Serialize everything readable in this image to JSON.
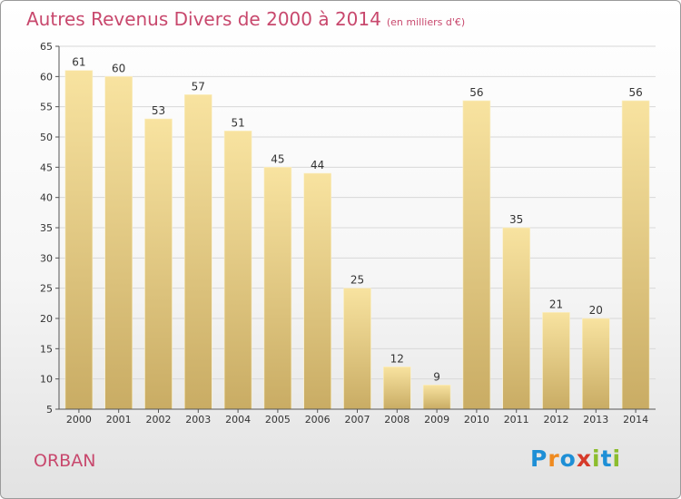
{
  "title": "Autres Revenus Divers de 2000 à 2014",
  "subtitle": "(en milliers d'€)",
  "commune": "ORBAN",
  "logo": {
    "letters": [
      {
        "char": "P",
        "color": "#1e8fd6"
      },
      {
        "char": "r",
        "color": "#ef8a1f"
      },
      {
        "char": "o",
        "color": "#1e8fd6"
      },
      {
        "char": "x",
        "color": "#d63a2a"
      },
      {
        "char": "i",
        "color": "#8cbd2e"
      },
      {
        "char": "t",
        "color": "#1e8fd6"
      },
      {
        "char": "i",
        "color": "#8cbd2e"
      }
    ]
  },
  "colors": {
    "title": "#c8486d",
    "bar_top": "#f8e3a0",
    "bar_bottom": "#c9ac64",
    "axis": "#555555",
    "grid": "#d8d8d8"
  },
  "chart_data": {
    "type": "bar",
    "title": "Autres Revenus Divers de 2000 à 2014",
    "subtitle": "(en milliers d'€)",
    "categories": [
      "2000",
      "2001",
      "2002",
      "2003",
      "2004",
      "2005",
      "2006",
      "2007",
      "2008",
      "2009",
      "2010",
      "2011",
      "2012",
      "2013",
      "2014"
    ],
    "values": [
      61,
      60,
      53,
      57,
      51,
      45,
      44,
      25,
      12,
      9,
      56,
      35,
      21,
      20,
      56
    ],
    "ylim": [
      5,
      65
    ],
    "yticks": [
      5,
      10,
      15,
      20,
      25,
      30,
      35,
      40,
      45,
      50,
      55,
      60,
      65
    ],
    "grid": true,
    "data_labels": true
  }
}
